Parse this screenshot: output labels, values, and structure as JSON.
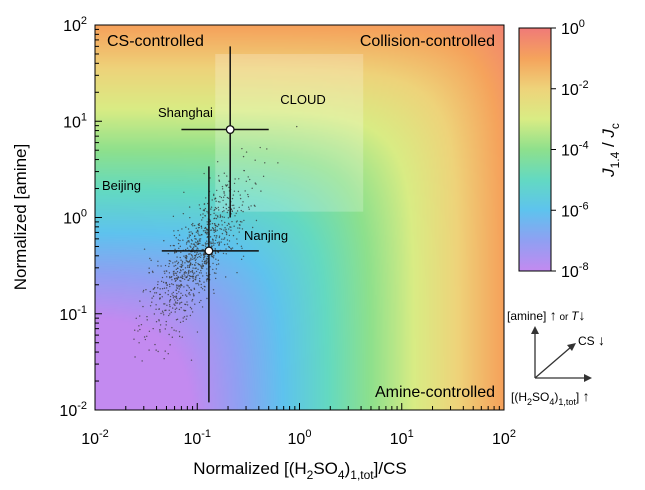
{
  "chart_data": {
    "type": "heatmap",
    "title": "",
    "x_scale": "log",
    "y_scale": "log",
    "xlim": [
      0.01,
      100
    ],
    "ylim": [
      0.01,
      100
    ],
    "x_ticks": [
      {
        "value": 0.01,
        "base": "10",
        "exp": "-2"
      },
      {
        "value": 0.1,
        "base": "10",
        "exp": "-1"
      },
      {
        "value": 1,
        "base": "10",
        "exp": "0"
      },
      {
        "value": 10,
        "base": "10",
        "exp": "1"
      },
      {
        "value": 100,
        "base": "10",
        "exp": "2"
      }
    ],
    "y_ticks": [
      {
        "value": 0.01,
        "base": "10",
        "exp": "-2"
      },
      {
        "value": 0.1,
        "base": "10",
        "exp": "-1"
      },
      {
        "value": 1,
        "base": "10",
        "exp": "0"
      },
      {
        "value": 10,
        "base": "10",
        "exp": "1"
      },
      {
        "value": 100,
        "base": "10",
        "exp": "2"
      }
    ],
    "xlabel": {
      "pre": "Normalized [(H",
      "sub1": "2",
      "mid": "SO",
      "sub2": "4",
      "post": ")",
      "sub3": "1,tot",
      "end": "]/CS"
    },
    "ylabel": "Normalized [amine]",
    "colorbar": {
      "label": {
        "j1": "J",
        "sub1": "1.4",
        "slash": " / ",
        "j2": "J",
        "sub2": "c"
      },
      "scale": "log",
      "range": [
        1e-08,
        1
      ],
      "ticks": [
        {
          "value": 1,
          "base": "10",
          "exp": "0"
        },
        {
          "value": 0.01,
          "base": "10",
          "exp": "-2"
        },
        {
          "value": 0.0001,
          "base": "10",
          "exp": "-4"
        },
        {
          "value": 1e-06,
          "base": "10",
          "exp": "-6"
        },
        {
          "value": 1e-08,
          "base": "10",
          "exp": "-8"
        }
      ],
      "colors": [
        "#f07a78",
        "#f5a35c",
        "#eed37a",
        "#d9ec84",
        "#8ee08c",
        "#63d9c2",
        "#5ec3ee",
        "#8fa0f2",
        "#c38af0"
      ]
    },
    "region_labels": [
      "CS-controlled",
      "Collision-controlled",
      "Amine-controlled"
    ],
    "cloud_region": {
      "label": "CLOUD",
      "x": [
        0.15,
        4.2
      ],
      "y": [
        1.15,
        50
      ]
    },
    "points": [
      {
        "name": "Shanghai",
        "x": 0.21,
        "y": 8.2,
        "x_err": [
          0.07,
          0.5
        ],
        "y_err": [
          1.0,
          60
        ]
      },
      {
        "name": "Nanjing",
        "x": 0.13,
        "y": 0.45,
        "x_err": [
          0.045,
          0.4
        ],
        "y_err": [
          0.012,
          3.4
        ]
      }
    ],
    "scatter_label": "Beijing",
    "scatter_summary": {
      "x_center": 0.1,
      "y_center": 0.4,
      "n": 900
    },
    "inset": {
      "amine_label": {
        "pre": "[amine] ",
        "arrow": "↑",
        "or": " or ",
        "T": "T",
        "arrow2": "↓"
      },
      "cs_label": {
        "pre": "CS ",
        "arrow": "↓"
      },
      "h2so4_label": {
        "pre": "[(H",
        "sub1": "2",
        "mid": "SO",
        "sub2": "4",
        "post": ")",
        "sub3": "1,tot",
        "end": "] ",
        "arrow": "↑"
      }
    }
  }
}
